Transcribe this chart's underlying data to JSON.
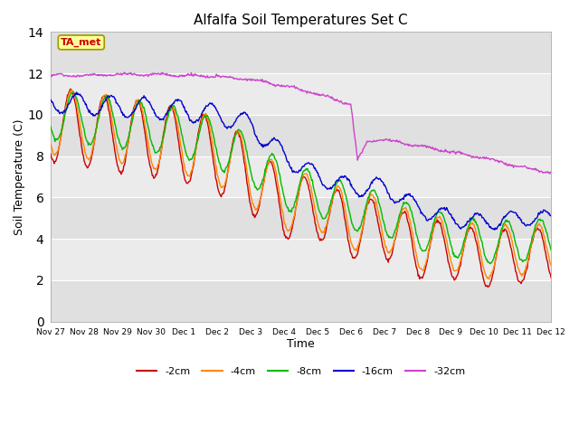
{
  "title": "Alfalfa Soil Temperatures Set C",
  "xlabel": "Time",
  "ylabel": "Soil Temperature (C)",
  "ylim": [
    0,
    14
  ],
  "yticks": [
    0,
    2,
    4,
    6,
    8,
    10,
    12,
    14
  ],
  "legend_labels": [
    "-2cm",
    "-4cm",
    "-8cm",
    "-16cm",
    "-32cm"
  ],
  "legend_colors": [
    "#cc0000",
    "#ff8800",
    "#00bb00",
    "#0000cc",
    "#cc44cc"
  ],
  "ta_met_label": "TA_met",
  "ta_met_color": "#cc0000",
  "ta_met_bg": "#ffff99",
  "tick_labels": [
    "Nov 27",
    "Nov 28",
    "Nov 29",
    "Nov 30",
    "Dec 1",
    "Dec 2",
    "Dec 3",
    "Dec 4",
    "Dec 5",
    "Dec 6",
    "Dec 7",
    "Dec 8",
    "Dec 9",
    "Dec 10",
    "Dec 11",
    "Dec 12"
  ],
  "band_colors": [
    "#e0e0e0",
    "#ebebeb"
  ],
  "n_points": 720,
  "total_days": 15
}
